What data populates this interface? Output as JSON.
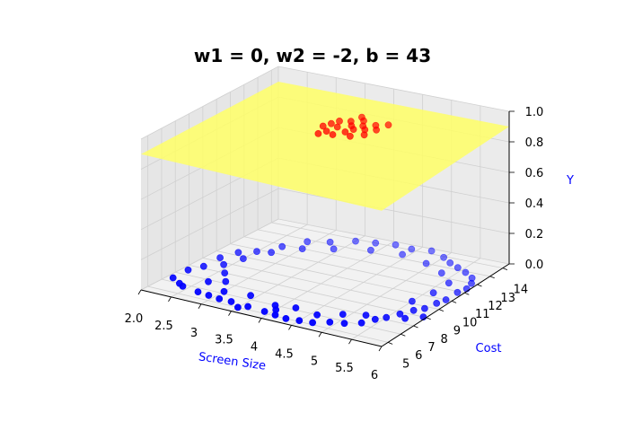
{
  "chart_data": {
    "type": "scatter",
    "title": "w1 = 0, w2 = -2, b = 43",
    "xlabel": "Screen Size",
    "ylabel": "Cost",
    "zlabel": "Y",
    "xlim": [
      2.0,
      6.0
    ],
    "ylim": [
      4.5,
      14.5
    ],
    "zlim": [
      0.0,
      1.0
    ],
    "x_ticks": [
      "2.0",
      "2.5",
      "3",
      "3.5",
      "4",
      "4.5",
      "5",
      "5.5",
      "6"
    ],
    "y_ticks": [
      "5",
      "6",
      "7",
      "8",
      "9",
      "10",
      "11",
      "12",
      "13",
      "14"
    ],
    "z_ticks": [
      "0.0",
      "0.2",
      "0.4",
      "0.6",
      "0.8",
      "1.0"
    ],
    "grid": true,
    "plane": {
      "z": 0.9,
      "color": "#ffff66"
    },
    "colors": {
      "class0": "#0000ff",
      "class1": "#ff0000",
      "axis_label": "#0000ff"
    },
    "series": [
      {
        "values": [
          [
            2.1,
            6.4,
            0
          ],
          [
            2.1,
            7.5,
            0
          ],
          [
            2.2,
            8.2,
            0
          ],
          [
            2.2,
            9.4,
            0
          ],
          [
            2.3,
            10.3,
            0
          ],
          [
            2.5,
            10.8,
            0
          ],
          [
            2.7,
            11.8,
            0
          ],
          [
            2.9,
            12.8,
            0
          ],
          [
            3.2,
            13.2,
            0
          ],
          [
            3.5,
            13.8,
            0
          ],
          [
            3.8,
            14.0,
            0
          ],
          [
            4.1,
            14.2,
            0
          ],
          [
            4.4,
            14.1,
            0
          ],
          [
            4.7,
            14.3,
            0
          ],
          [
            5.0,
            13.9,
            0
          ],
          [
            5.2,
            13.5,
            0
          ],
          [
            5.4,
            13.2,
            0
          ],
          [
            5.6,
            12.9,
            0
          ],
          [
            5.8,
            12.5,
            0
          ],
          [
            5.9,
            12.0,
            0
          ],
          [
            5.95,
            11.4,
            0
          ],
          [
            5.9,
            10.9,
            0
          ],
          [
            5.9,
            10.0,
            0
          ],
          [
            5.85,
            9.5,
            0
          ],
          [
            5.8,
            8.8,
            0
          ],
          [
            5.7,
            8.4,
            0
          ],
          [
            5.6,
            7.8,
            0
          ],
          [
            5.5,
            7.2,
            0
          ],
          [
            5.4,
            6.8,
            0
          ],
          [
            5.3,
            6.2,
            0
          ],
          [
            5.1,
            5.8,
            0
          ],
          [
            4.9,
            5.6,
            0
          ],
          [
            4.7,
            5.2,
            0
          ],
          [
            4.5,
            5.1,
            0
          ],
          [
            4.3,
            5.0,
            0
          ],
          [
            4.1,
            5.1,
            0
          ],
          [
            3.9,
            5.2,
            0
          ],
          [
            3.6,
            5.3,
            0
          ],
          [
            3.3,
            5.4,
            0
          ],
          [
            3.1,
            5.4,
            0
          ],
          [
            2.9,
            5.5,
            0
          ],
          [
            2.7,
            5.6,
            0
          ],
          [
            2.4,
            5.8,
            0
          ],
          [
            2.3,
            6.0,
            0
          ],
          [
            2.6,
            6.8,
            0
          ],
          [
            2.8,
            7.2,
            0
          ],
          [
            3.0,
            6.2,
            0
          ],
          [
            3.4,
            6.4,
            0
          ],
          [
            3.9,
            6.0,
            0
          ],
          [
            4.2,
            6.2,
            0
          ],
          [
            4.6,
            6.0,
            0
          ],
          [
            4.9,
            6.6,
            0
          ],
          [
            5.2,
            7.0,
            0
          ],
          [
            5.5,
            9.2,
            0
          ],
          [
            5.6,
            10.4,
            0
          ],
          [
            5.6,
            11.6,
            0
          ],
          [
            5.3,
            12.4,
            0
          ],
          [
            4.9,
            13.0,
            0
          ],
          [
            4.4,
            13.4,
            0
          ],
          [
            3.9,
            13.2,
            0
          ],
          [
            3.4,
            12.6,
            0
          ],
          [
            3.0,
            12.0,
            0
          ],
          [
            2.7,
            11.0,
            0
          ],
          [
            2.5,
            9.8,
            0
          ],
          [
            2.4,
            8.8,
            0
          ],
          [
            2.6,
            8.0,
            0
          ],
          [
            5.75,
            7.5,
            0
          ],
          [
            5.95,
            8.0,
            0
          ],
          [
            4.0,
            5.6,
            0
          ],
          [
            3.5,
            5.0,
            0
          ]
        ]
      },
      {
        "values": [
          [
            3.9,
            9.6,
            1
          ],
          [
            3.95,
            10.0,
            1
          ],
          [
            4.0,
            10.4,
            1
          ],
          [
            4.05,
            9.2,
            1
          ],
          [
            4.1,
            9.8,
            1
          ],
          [
            4.15,
            10.6,
            1
          ],
          [
            4.2,
            9.0,
            1
          ],
          [
            4.25,
            10.2,
            1
          ],
          [
            4.3,
            9.5,
            1
          ],
          [
            4.3,
            10.9,
            1
          ],
          [
            4.35,
            9.9,
            1
          ],
          [
            4.4,
            10.4,
            1
          ],
          [
            4.45,
            9.2,
            1
          ],
          [
            4.5,
            10.1,
            1
          ],
          [
            4.55,
            10.7,
            1
          ],
          [
            4.6,
            9.6,
            1
          ],
          [
            4.65,
            10.3,
            1
          ],
          [
            4.7,
            11.0,
            1
          ],
          [
            4.2,
            11.2,
            1
          ],
          [
            4.0,
            8.8,
            1
          ]
        ]
      }
    ]
  }
}
